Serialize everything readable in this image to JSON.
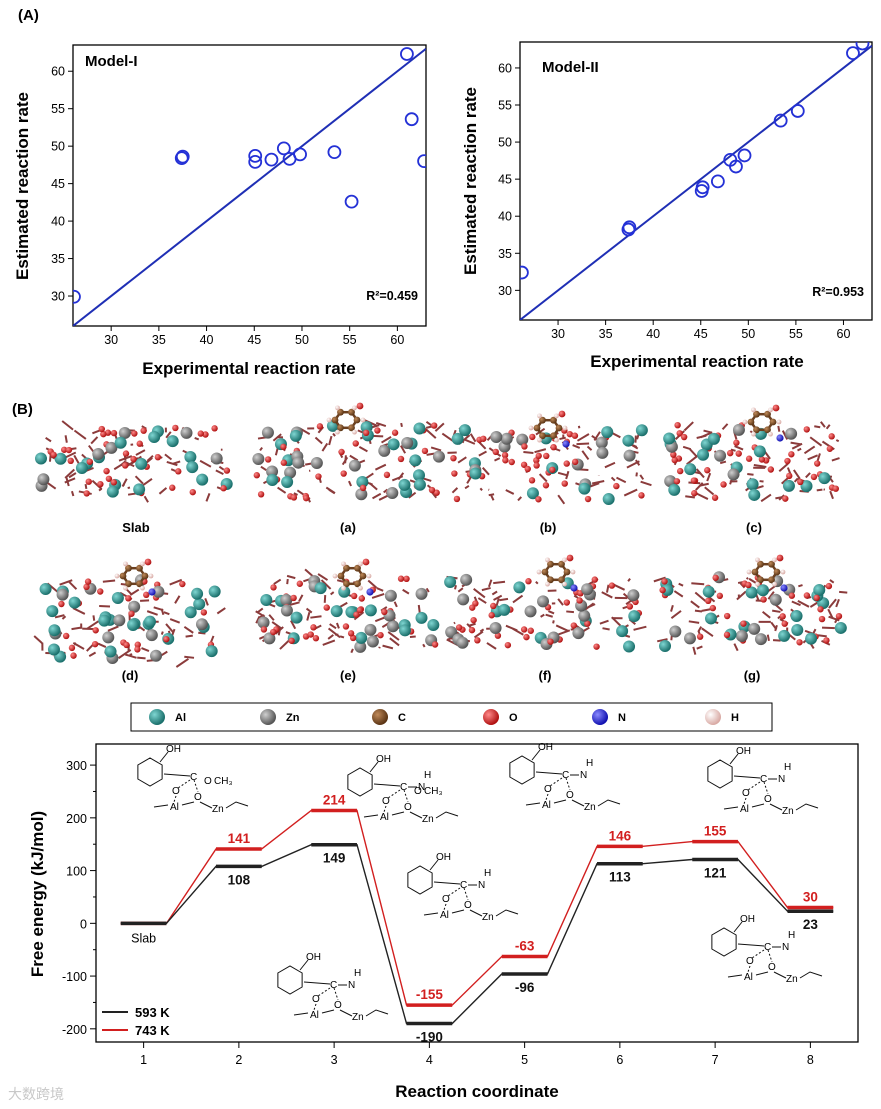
{
  "panel_labels": {
    "a": "(A)",
    "b": "(B)"
  },
  "chart_data": [
    {
      "type": "scatter",
      "title": "Model-I",
      "xlabel": "Experimental reaction rate",
      "ylabel": "Estimated reaction rate",
      "annotation": "R²=0.459",
      "xlim": [
        26,
        63
      ],
      "ylim": [
        26,
        63.5
      ],
      "xticks": [
        30,
        35,
        40,
        45,
        50,
        55,
        60
      ],
      "yticks": [
        30,
        35,
        40,
        45,
        50,
        55,
        60
      ],
      "points": [
        {
          "x": 26.1,
          "y": 29.9
        },
        {
          "x": 37.4,
          "y": 48.4
        },
        {
          "x": 37.5,
          "y": 48.6
        },
        {
          "x": 45.1,
          "y": 47.9
        },
        {
          "x": 45.1,
          "y": 48.7
        },
        {
          "x": 46.8,
          "y": 48.2
        },
        {
          "x": 48.1,
          "y": 49.7
        },
        {
          "x": 48.7,
          "y": 48.3
        },
        {
          "x": 49.8,
          "y": 48.9
        },
        {
          "x": 53.4,
          "y": 49.2
        },
        {
          "x": 55.2,
          "y": 42.6
        },
        {
          "x": 61.0,
          "y": 62.3
        },
        {
          "x": 61.5,
          "y": 53.6
        },
        {
          "x": 62.8,
          "y": 48.0
        }
      ],
      "fit_line": {
        "x": [
          26,
          63
        ],
        "y": [
          26,
          63
        ]
      }
    },
    {
      "type": "scatter",
      "title": "Model-II",
      "xlabel": "Experimental reaction rate",
      "ylabel": "Estimated reaction rate",
      "annotation": "R²=0.953",
      "xlim": [
        26,
        63
      ],
      "ylim": [
        26,
        63.5
      ],
      "xticks": [
        30,
        35,
        40,
        45,
        50,
        55,
        60
      ],
      "yticks": [
        30,
        35,
        40,
        45,
        50,
        55,
        60
      ],
      "points": [
        {
          "x": 26.2,
          "y": 32.4
        },
        {
          "x": 37.4,
          "y": 38.2
        },
        {
          "x": 37.5,
          "y": 38.5
        },
        {
          "x": 45.1,
          "y": 43.4
        },
        {
          "x": 45.2,
          "y": 43.9
        },
        {
          "x": 46.8,
          "y": 44.7
        },
        {
          "x": 48.1,
          "y": 47.6
        },
        {
          "x": 48.7,
          "y": 46.7
        },
        {
          "x": 49.6,
          "y": 48.2
        },
        {
          "x": 53.4,
          "y": 52.9
        },
        {
          "x": 55.2,
          "y": 54.2
        },
        {
          "x": 61.0,
          "y": 62.0
        },
        {
          "x": 62.0,
          "y": 63.3
        }
      ],
      "fit_line": {
        "x": [
          26,
          63
        ],
        "y": [
          26,
          63
        ]
      }
    },
    {
      "type": "line",
      "title": "",
      "xlabel": "Reaction coordinate",
      "ylabel": "Free energy (kJ/mol)",
      "xlim": [
        0.5,
        8.5
      ],
      "ylim": [
        -225,
        340
      ],
      "xticks": [
        1,
        2,
        3,
        4,
        5,
        6,
        7,
        8
      ],
      "yticks": [
        -200,
        -100,
        0,
        100,
        200,
        300
      ],
      "start_label": "Slab",
      "series": [
        {
          "name": "593 K",
          "color": "#222222",
          "values": [
            0,
            108,
            149,
            -190,
            -96,
            113,
            121,
            23
          ],
          "labels": [
            "",
            "108",
            "149",
            "-190",
            "-96",
            "113",
            "121",
            "23"
          ]
        },
        {
          "name": "743 K",
          "color": "#d21f1f",
          "values": [
            0,
            141,
            214,
            -155,
            -63,
            146,
            155,
            30
          ],
          "labels": [
            "",
            "141",
            "214",
            "-155",
            "-63",
            "146",
            "155",
            "30"
          ]
        }
      ]
    }
  ],
  "structures": {
    "row1": [
      "Slab",
      "(a)",
      "(b)",
      "(c)"
    ],
    "row2": [
      "(d)",
      "(e)",
      "(f)",
      "(g)"
    ]
  },
  "atom_legend": [
    {
      "symbol": "Al",
      "color": "#1f8a86"
    },
    {
      "symbol": "Zn",
      "color": "#6e6e6e"
    },
    {
      "symbol": "C",
      "color": "#7a4a22"
    },
    {
      "symbol": "O",
      "color": "#d42020"
    },
    {
      "symbol": "N",
      "color": "#2222dd"
    },
    {
      "symbol": "H",
      "color": "#ecc8c4"
    }
  ],
  "mechanism_labels": {
    "oh": "OH",
    "ch3": "CH₃",
    "c": "C",
    "o": "O",
    "n": "N",
    "h": "H",
    "al": "Al",
    "zn": "Zn",
    "ho": "H"
  },
  "watermark": "大数跨境"
}
